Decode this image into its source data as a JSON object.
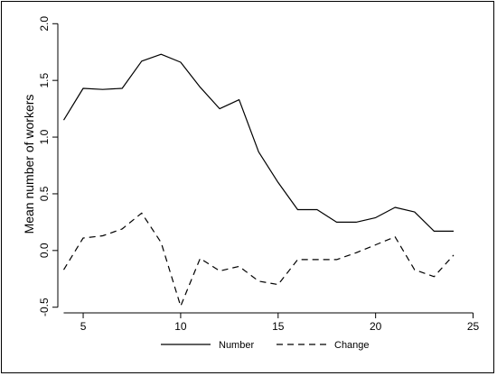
{
  "chart_data": {
    "type": "line",
    "title": "",
    "xlabel": "",
    "ylabel": "Mean number of workers",
    "xlim": [
      3.7,
      25.3
    ],
    "ylim": [
      -0.55,
      2.05
    ],
    "xticks": [
      5,
      10,
      15,
      20,
      25
    ],
    "yticks": [
      -0.5,
      0.0,
      0.5,
      1.0,
      1.5,
      2.0
    ],
    "xtick_labels": [
      "5",
      "10",
      "15",
      "20",
      "25"
    ],
    "ytick_labels": [
      "-0.5",
      "0.0",
      "0.5",
      "1.0",
      "1.5",
      "2.0"
    ],
    "grid": false,
    "legend_position": "bottom",
    "x": [
      4,
      5,
      6,
      7,
      8,
      9,
      10,
      11,
      12,
      13,
      14,
      15,
      16,
      17,
      18,
      19,
      20,
      21,
      22,
      23,
      24
    ],
    "series": [
      {
        "name": "Number",
        "style": "solid",
        "color": "#000000",
        "values": [
          1.15,
          1.43,
          1.42,
          1.43,
          1.67,
          1.73,
          1.66,
          1.44,
          1.25,
          1.33,
          0.87,
          0.6,
          0.36,
          0.36,
          0.25,
          0.25,
          0.29,
          0.38,
          0.34,
          0.17,
          0.17
        ]
      },
      {
        "name": "Change",
        "style": "dashed",
        "color": "#000000",
        "values": [
          -0.17,
          0.11,
          0.13,
          0.19,
          0.33,
          0.07,
          -0.49,
          -0.07,
          -0.18,
          -0.14,
          -0.27,
          -0.3,
          -0.08,
          -0.08,
          -0.08,
          -0.02,
          0.05,
          0.12,
          -0.17,
          -0.23,
          -0.04
        ]
      }
    ]
  }
}
